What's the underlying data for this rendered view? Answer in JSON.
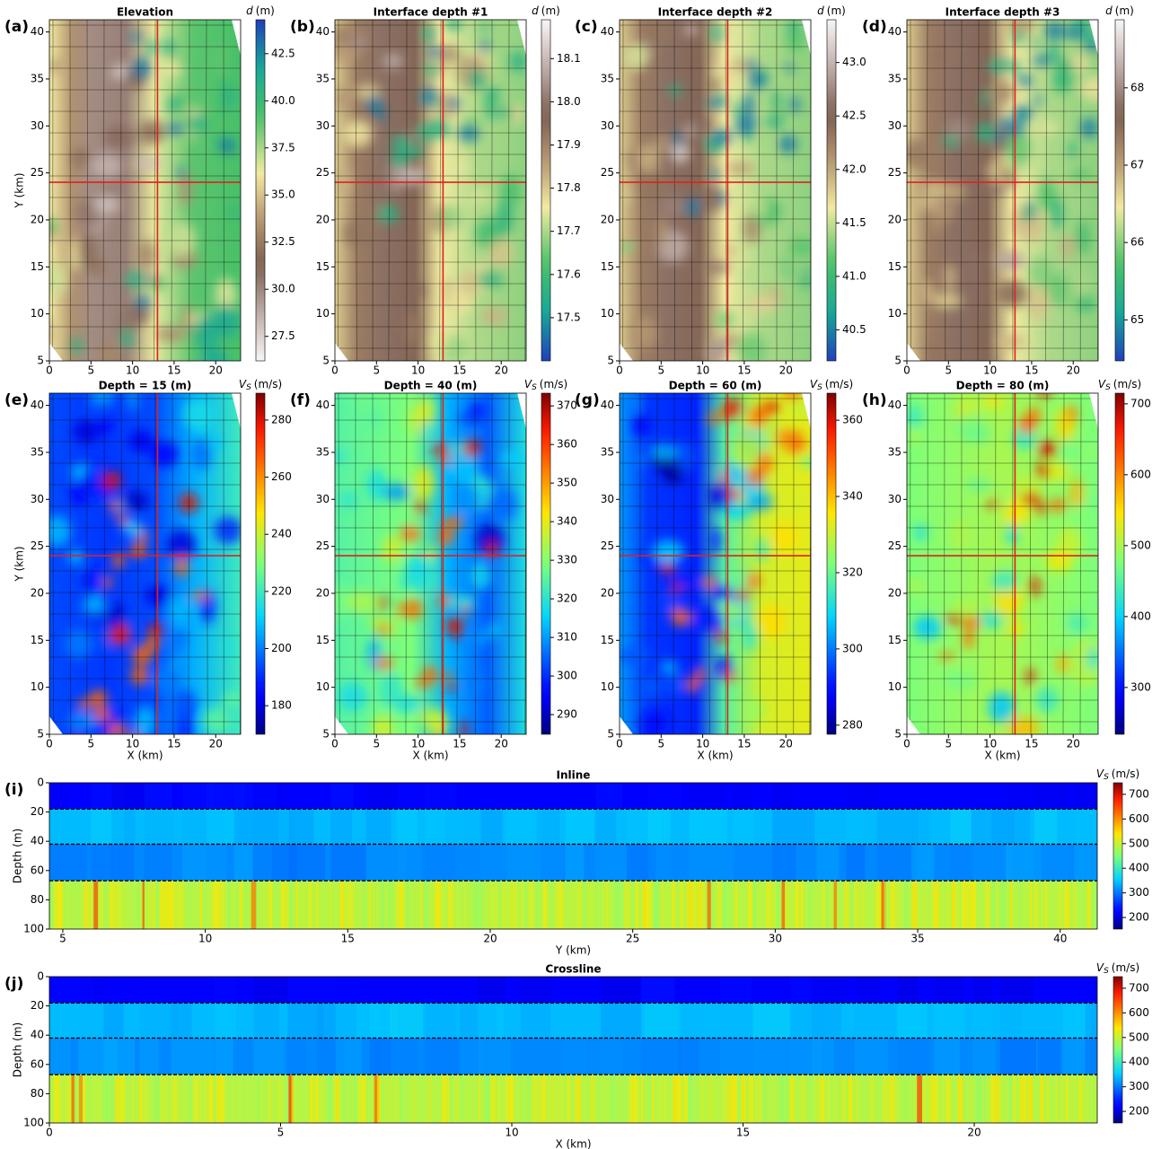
{
  "chart_data": [
    {
      "type": "heatmap",
      "label": "(a)",
      "title": "Elevation",
      "ylabel": "Y (km)",
      "xlim": [
        0,
        23
      ],
      "xticks": [
        0,
        5,
        10,
        15,
        20
      ],
      "ylim": [
        5,
        41.3
      ],
      "yticks": [
        5,
        10,
        15,
        20,
        25,
        30,
        35,
        40
      ],
      "crosshair": {
        "x": 13,
        "y": 24,
        "color": "#e02020"
      },
      "colormap": "terrain",
      "clim": [
        26.2,
        44.3
      ],
      "cticks": [
        27.5,
        {
          "value": 30,
          "label": "30.0"
        },
        32.5,
        {
          "value": 35,
          "label": "35.0"
        },
        37.5,
        {
          "value": 40,
          "label": "40.0"
        },
        42.5
      ],
      "cbar_symbol": "d",
      "cbar_unit": "(m)"
    },
    {
      "type": "heatmap",
      "label": "(b)",
      "title": "Interface depth #1",
      "xlim": [
        0,
        23
      ],
      "xticks": [
        0,
        5,
        10,
        15,
        20
      ],
      "ylim": [
        5,
        41.3
      ],
      "yticks": [
        5,
        10,
        15,
        20,
        25,
        30,
        35,
        40
      ],
      "crosshair": {
        "x": 13,
        "y": 24,
        "color": "#e02020"
      },
      "colormap": "terrain_r",
      "clim": [
        17.4,
        18.19
      ],
      "cticks": [
        17.5,
        17.6,
        17.7,
        17.8,
        17.9,
        {
          "value": 18,
          "label": "18.0"
        },
        18.1
      ],
      "cbar_symbol": "d",
      "cbar_unit": "(m)"
    },
    {
      "type": "heatmap",
      "label": "(c)",
      "title": "Interface depth #2",
      "xlim": [
        0,
        23
      ],
      "xticks": [
        0,
        5,
        10,
        15,
        20
      ],
      "ylim": [
        5,
        41.3
      ],
      "yticks": [
        5,
        10,
        15,
        20,
        25,
        30,
        35,
        40
      ],
      "crosshair": {
        "x": 13,
        "y": 24,
        "color": "#e02020"
      },
      "colormap": "terrain_r",
      "clim": [
        40.21,
        43.4
      ],
      "cticks": [
        40.5,
        {
          "value": 41,
          "label": "41.0"
        },
        41.5,
        {
          "value": 42,
          "label": "42.0"
        },
        42.5,
        {
          "value": 43,
          "label": "43.0"
        }
      ],
      "cbar_symbol": "d",
      "cbar_unit": "(m)"
    },
    {
      "type": "heatmap",
      "label": "(d)",
      "title": "Interface depth #3",
      "xlim": [
        0,
        23
      ],
      "xticks": [
        0,
        5,
        10,
        15,
        20
      ],
      "ylim": [
        5,
        41.3
      ],
      "yticks": [
        5,
        10,
        15,
        20,
        25,
        30,
        35,
        40
      ],
      "crosshair": {
        "x": 13,
        "y": 24,
        "color": "#e02020"
      },
      "colormap": "terrain_r",
      "clim": [
        64.47,
        68.88
      ],
      "cticks": [
        65,
        66,
        67,
        68
      ],
      "cbar_symbol": "d",
      "cbar_unit": "(m)"
    },
    {
      "type": "heatmap",
      "label": "(e)",
      "title": "Depth = 15 (m)",
      "xlabel": "X (km)",
      "ylabel": "Y (km)",
      "xlim": [
        0,
        23
      ],
      "xticks": [
        0,
        5,
        10,
        15,
        20
      ],
      "ylim": [
        5,
        41.3
      ],
      "yticks": [
        5,
        10,
        15,
        20,
        25,
        30,
        35,
        40
      ],
      "crosshair": {
        "x": 13,
        "y": 24,
        "color": "#e02020"
      },
      "colormap": "jet",
      "clim": [
        170,
        289.4
      ],
      "cticks": [
        180,
        200,
        220,
        240,
        260,
        280
      ],
      "cbar_symbol": "V",
      "cbar_subscript": "S",
      "cbar_unit": "(m/s)"
    },
    {
      "type": "heatmap",
      "label": "(f)",
      "title": "Depth = 40 (m)",
      "xlabel": "X (km)",
      "xlim": [
        0,
        23
      ],
      "xticks": [
        0,
        5,
        10,
        15,
        20
      ],
      "ylim": [
        5,
        41.3
      ],
      "yticks": [
        5,
        10,
        15,
        20,
        25,
        30,
        35,
        40
      ],
      "crosshair": {
        "x": 13,
        "y": 24,
        "color": "#e02020"
      },
      "colormap": "jet",
      "clim": [
        284.9,
        373.3
      ],
      "cticks": [
        290,
        300,
        310,
        320,
        330,
        340,
        350,
        360,
        370
      ],
      "cbar_symbol": "V",
      "cbar_subscript": "S",
      "cbar_unit": "(m/s)"
    },
    {
      "type": "heatmap",
      "label": "(g)",
      "title": "Depth = 60 (m)",
      "xlabel": "X (km)",
      "xlim": [
        0,
        23
      ],
      "xticks": [
        0,
        5,
        10,
        15,
        20
      ],
      "ylim": [
        5,
        41.3
      ],
      "yticks": [
        5,
        10,
        15,
        20,
        25,
        30,
        35,
        40
      ],
      "crosshair": {
        "x": 13,
        "y": 24,
        "color": "#e02020"
      },
      "colormap": "jet",
      "clim": [
        277.6,
        367.1
      ],
      "cticks": [
        280,
        300,
        320,
        340,
        360
      ],
      "cbar_symbol": "V",
      "cbar_subscript": "S",
      "cbar_unit": "(m/s)"
    },
    {
      "type": "heatmap",
      "label": "(h)",
      "title": "Depth = 80 (m)",
      "xlabel": "X (km)",
      "xlim": [
        0,
        23
      ],
      "xticks": [
        0,
        5,
        10,
        15,
        20
      ],
      "ylim": [
        5,
        41.3
      ],
      "yticks": [
        5,
        10,
        15,
        20,
        25,
        30,
        35,
        40
      ],
      "crosshair": {
        "x": 13,
        "y": 24,
        "color": "#e02020"
      },
      "colormap": "jet",
      "clim": [
        234,
        715
      ],
      "cticks": [
        300,
        400,
        500,
        600,
        700
      ],
      "cbar_symbol": "V",
      "cbar_subscript": "S",
      "cbar_unit": "(m/s)"
    },
    {
      "type": "section",
      "label": "(i)",
      "title": "Inline",
      "xlabel": "Y (km)",
      "ylabel": "Depth (m)",
      "xlim": [
        4.53,
        41.3
      ],
      "xticks": [
        5,
        10,
        15,
        20,
        25,
        30,
        35,
        40
      ],
      "ylim": [
        0,
        100
      ],
      "invert_y": true,
      "yticks": [
        0,
        20,
        40,
        60,
        80,
        100
      ],
      "interfaces": [
        18,
        42,
        67
      ],
      "layer_vs": [
        220,
        340,
        310,
        490
      ],
      "colormap": "jet",
      "clim": [
        153,
        747
      ],
      "cticks": [
        200,
        300,
        400,
        500,
        600,
        700
      ],
      "cbar_symbol": "V",
      "cbar_subscript": "S",
      "cbar_unit": "(m/s)"
    },
    {
      "type": "section",
      "label": "(j)",
      "title": "Crossline",
      "xlabel": "X (km)",
      "ylabel": "Depth (m)",
      "xlim": [
        0,
        22.66
      ],
      "xticks": [
        0,
        5,
        10,
        15,
        20
      ],
      "ylim": [
        0,
        100
      ],
      "invert_y": true,
      "yticks": [
        0,
        20,
        40,
        60,
        80,
        100
      ],
      "interfaces": [
        18,
        42,
        67
      ],
      "layer_vs": [
        220,
        340,
        310,
        490
      ],
      "colormap": "jet",
      "clim": [
        153,
        747
      ],
      "cticks": [
        200,
        300,
        400,
        500,
        600,
        700
      ],
      "cbar_symbol": "V",
      "cbar_subscript": "S",
      "cbar_unit": "(m/s)"
    }
  ]
}
